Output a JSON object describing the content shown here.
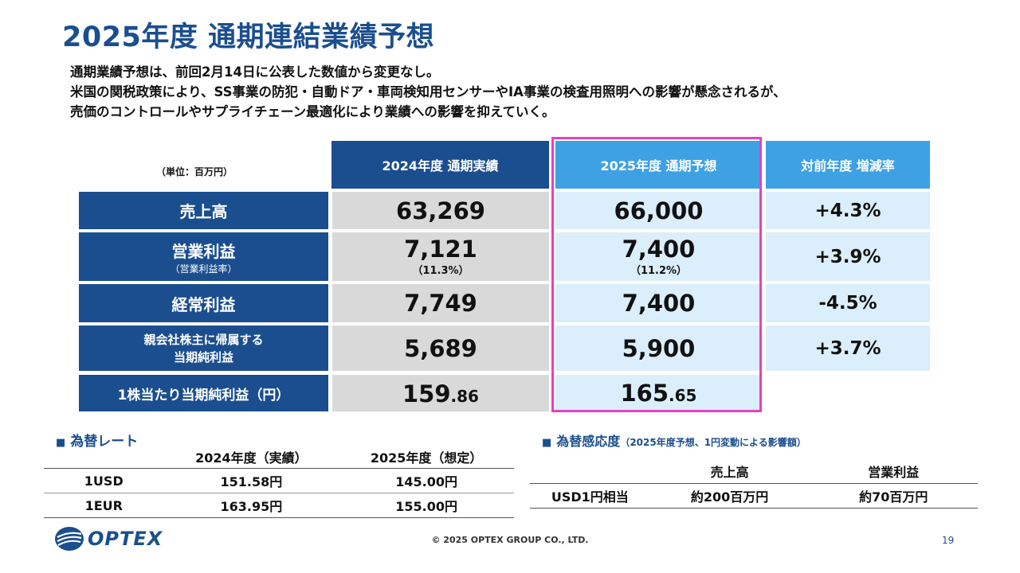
{
  "title": "2025年度 通期連結業績予想",
  "intro": [
    "通期業績予想は、前回2月14日に公表した数値から変更なし。",
    "米国の関税政策により、SS事業の防犯・自動ドア・車両検知用センサーやIA事業の検査用照明への影響が懸念されるが、",
    "売価のコントロールやサプライチェーン最適化により業績への影響を抑えていく。"
  ],
  "main_table": {
    "unit": "（単位：百万円）",
    "headers": [
      "2024年度 通期実績",
      "2025年度 通期予想",
      "対前年度 増減率"
    ],
    "rows": [
      {
        "label": "売上高",
        "a": "63,269",
        "b": "66,000",
        "c": "+4.3%"
      },
      {
        "label": "営業利益",
        "sublabel": "（営業利益率）",
        "a": "7,121",
        "a_sub": "（11.3%）",
        "b": "7,400",
        "b_sub": "（11.2%）",
        "c": "+3.9%"
      },
      {
        "label": "経常利益",
        "a": "7,749",
        "b": "7,400",
        "c": "-4.5%"
      },
      {
        "label": "親会社株主に帰属する",
        "label2": "当期純利益",
        "a": "5,689",
        "b": "5,900",
        "c": "+3.7%"
      },
      {
        "label": "1株当たり当期純利益（円）",
        "a_int": "159",
        "a_dec": ".86",
        "b_int": "165",
        "b_dec": ".65"
      }
    ]
  },
  "fx": {
    "title": "為替レート",
    "headers": [
      "2024年度（実績）",
      "2025年度（想定）"
    ],
    "rows": [
      {
        "cur": "1USD",
        "a": "151.58円",
        "b": "145.00円"
      },
      {
        "cur": "1EUR",
        "a": "163.95円",
        "b": "155.00円"
      }
    ]
  },
  "sensitivity": {
    "title": "為替感応度",
    "note": "（2025年度予想、1円変動による影響額）",
    "headers": [
      "売上高",
      "営業利益"
    ],
    "row": {
      "label": "USD1円相当",
      "a": "約200百万円",
      "b": "約70百万円"
    }
  },
  "footer": {
    "logo_text": "OPTEX",
    "copyright": "© 2025 OPTEX GROUP CO., LTD.",
    "page": "19"
  },
  "colors": {
    "navy": "#1b4e8f",
    "sky": "#3ea1e3",
    "highlight": "#e83ec4",
    "gray": "#d9d9d9",
    "lightblue": "#dbeefb"
  }
}
